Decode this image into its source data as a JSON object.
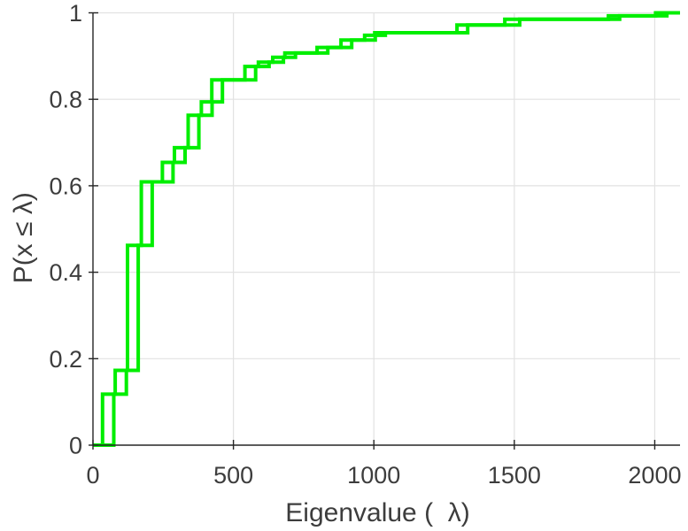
{
  "figure": {
    "background": "#ffffff"
  },
  "chart_data": {
    "type": "line",
    "style": "ecdf-stairs",
    "title": "",
    "xlabel": "Eigenvalue (  λ)",
    "ylabel": "P(x ≤ λ)",
    "xlim": [
      0,
      2090
    ],
    "ylim": [
      0,
      1
    ],
    "xticks": [
      0,
      500,
      1000,
      1500,
      2000
    ],
    "xtick_labels": [
      "0",
      "500",
      "1000",
      "1500",
      "2000"
    ],
    "yticks": [
      0,
      0.2,
      0.4,
      0.6,
      0.8,
      1
    ],
    "ytick_labels": [
      "0",
      "0.2",
      "0.4",
      "0.6",
      "0.8",
      "1"
    ],
    "grid": true,
    "legend": "none",
    "grid_color": "#e2e2e2",
    "axis_color": "#262626",
    "tick_label_color": "#3d3d3d",
    "line_color": "#00EE00",
    "line_width": 4,
    "series": [
      {
        "name": "ecdf-curve-1",
        "x": [
          34,
          79,
          123,
          172,
          247,
          290,
          339,
          386,
          423,
          541,
          589,
          640,
          683,
          798,
          883,
          967,
          1003,
          1296,
          1466,
          1835,
          2003
        ],
        "y": [
          0.118,
          0.173,
          0.462,
          0.609,
          0.654,
          0.688,
          0.763,
          0.794,
          0.845,
          0.876,
          0.886,
          0.897,
          0.907,
          0.92,
          0.937,
          0.948,
          0.954,
          0.972,
          0.985,
          0.993,
          1.0
        ]
      },
      {
        "name": "ecdf-curve-2",
        "x": [
          74,
          119,
          161,
          211,
          285,
          328,
          377,
          424,
          461,
          579,
          627,
          678,
          721,
          836,
          921,
          1005,
          1041,
          1334,
          1519,
          1875,
          2043
        ],
        "y": [
          0.118,
          0.173,
          0.462,
          0.609,
          0.654,
          0.688,
          0.763,
          0.794,
          0.845,
          0.876,
          0.886,
          0.897,
          0.907,
          0.92,
          0.937,
          0.948,
          0.954,
          0.972,
          0.985,
          0.993,
          1.0
        ]
      }
    ]
  }
}
